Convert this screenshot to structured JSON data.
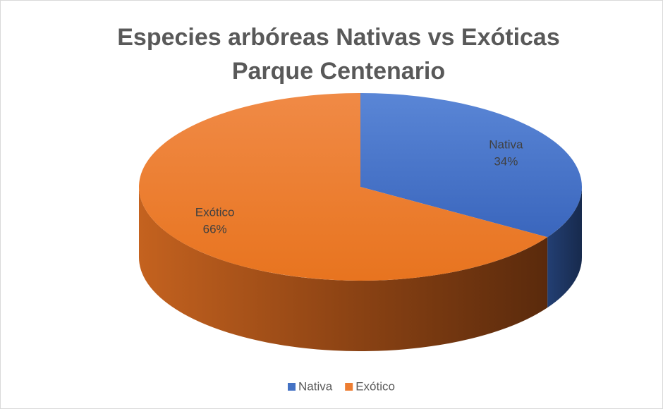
{
  "chart_data": {
    "type": "pie",
    "title": [
      "Especies arbóreas Nativas vs Exóticas",
      "Parque Centenario"
    ],
    "categories": [
      "Nativa",
      "Exótico"
    ],
    "values": [
      34,
      66
    ],
    "value_labels": [
      "34%",
      "66%"
    ],
    "colors": [
      "#4472c4",
      "#ed7d31"
    ],
    "legend": "bottom"
  }
}
